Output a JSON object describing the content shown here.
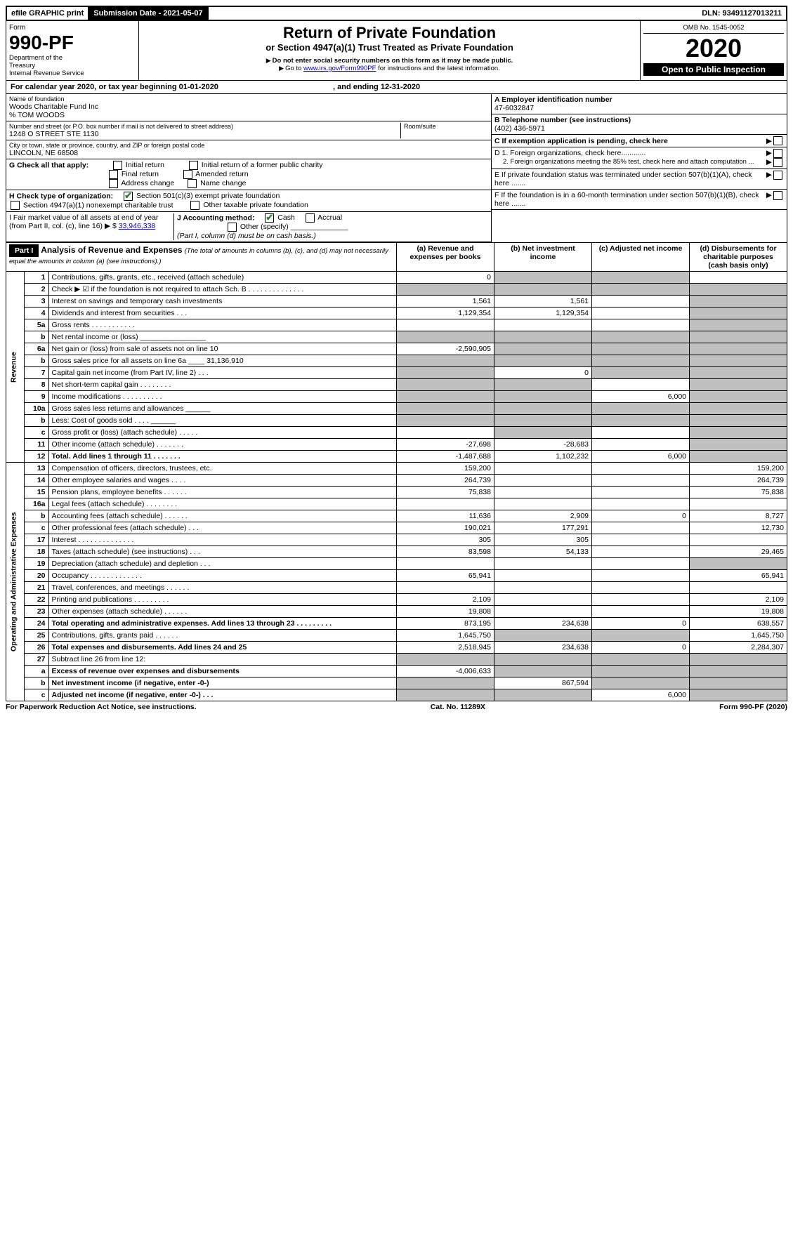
{
  "top": {
    "efile": "efile GRAPHIC print",
    "submission_label": "Submission Date - 2021-05-07",
    "dln_label": "DLN: 93491127013211"
  },
  "header": {
    "form_word": "Form",
    "form_no": "990-PF",
    "dept1": "Department of the",
    "dept2": "Treasury",
    "dept3": "Internal Revenue Service",
    "title": "Return of Private Foundation",
    "subtitle": "or Section 4947(a)(1) Trust Treated as Private Foundation",
    "warn1": "Do not enter social security numbers on this form as it may be made public.",
    "warn2_pre": "Go to ",
    "warn2_link": "www.irs.gov/Form990PF",
    "warn2_post": " for instructions and the latest information.",
    "omb": "OMB No. 1545-0052",
    "year": "2020",
    "open": "Open to Public Inspection"
  },
  "cal": {
    "text1": "For calendar year 2020, or tax year beginning ",
    "begin": "01-01-2020",
    "text2": " , and ending ",
    "end": "12-31-2020"
  },
  "entity": {
    "name_label": "Name of foundation",
    "name": "Woods Charitable Fund Inc",
    "care_of": "% TOM WOODS",
    "street_label": "Number and street (or P.O. box number if mail is not delivered to street address)",
    "street": "1248 O STREET STE 1130",
    "room_label": "Room/suite",
    "city_label": "City or town, state or province, country, and ZIP or foreign postal code",
    "city": "LINCOLN, NE  68508",
    "a_label": "A Employer identification number",
    "ein": "47-6032847",
    "b_label": "B Telephone number (see instructions)",
    "phone": "(402) 436-5971",
    "c_label": "C If exemption application is pending, check here"
  },
  "checks": {
    "g_label": "G Check all that apply:",
    "g1": "Initial return",
    "g2": "Initial return of a former public charity",
    "g3": "Final return",
    "g4": "Amended return",
    "g5": "Address change",
    "g6": "Name change",
    "h_label": "H Check type of organization:",
    "h1": "Section 501(c)(3) exempt private foundation",
    "h2": "Section 4947(a)(1) nonexempt charitable trust",
    "h3": "Other taxable private foundation",
    "i_label": "I Fair market value of all assets at end of year (from Part II, col. (c), line 16)",
    "i_val": "33,946,338",
    "j_label": "J Accounting method:",
    "j1": "Cash",
    "j2": "Accrual",
    "j3": "Other (specify)",
    "j_note": "(Part I, column (d) must be on cash basis.)",
    "d1": "D 1. Foreign organizations, check here............",
    "d2": "2. Foreign organizations meeting the 85% test, check here and attach computation ...",
    "e": "E  If private foundation status was terminated under section 507(b)(1)(A), check here .......",
    "f": "F  If the foundation is in a 60-month termination under section 507(b)(1)(B), check here ......."
  },
  "part1": {
    "label": "Part I",
    "title": "Analysis of Revenue and Expenses",
    "note": "(The total of amounts in columns (b), (c), and (d) may not necessarily equal the amounts in column (a) (see instructions).)",
    "cols": {
      "a": "(a) Revenue and expenses per books",
      "b": "(b) Net investment income",
      "c": "(c) Adjusted net income",
      "d": "(d) Disbursements for charitable purposes (cash basis only)"
    }
  },
  "sections": {
    "rev": "Revenue",
    "exp": "Operating and Administrative Expenses"
  },
  "rows": [
    {
      "n": "1",
      "desc": "Contributions, gifts, grants, etc., received (attach schedule)",
      "a": "0",
      "b": "",
      "c": "",
      "d": "",
      "ds": "",
      "cs": "s",
      "bs": "s"
    },
    {
      "n": "2",
      "desc": "Check ▶ ☑ if the foundation is not required to attach Sch. B",
      "a": "",
      "b": "",
      "c": "",
      "d": "",
      "ds": "s",
      "cs": "s",
      "bs": "s",
      "as": "s",
      "dots": " .  .  .  .  .  .  .  .  .  .  .  .  .  ."
    },
    {
      "n": "3",
      "desc": "Interest on savings and temporary cash investments",
      "a": "1,561",
      "b": "1,561",
      "c": "",
      "d": "",
      "ds": "s"
    },
    {
      "n": "4",
      "desc": "Dividends and interest from securities   .   .   .",
      "a": "1,129,354",
      "b": "1,129,354",
      "c": "",
      "d": "",
      "ds": "s"
    },
    {
      "n": "5a",
      "desc": "Gross rents    .   .   .   .   .   .   .   .   .   .   .",
      "a": "",
      "b": "",
      "c": "",
      "d": "",
      "ds": "s"
    },
    {
      "n": "b",
      "desc": "Net rental income or (loss)  ________________",
      "a": "",
      "b": "",
      "c": "",
      "d": "",
      "as": "s",
      "bs": "s",
      "cs": "s",
      "ds": "s"
    },
    {
      "n": "6a",
      "desc": "Net gain or (loss) from sale of assets not on line 10",
      "a": "-2,590,905",
      "b": "",
      "c": "",
      "d": "",
      "bs": "s",
      "cs": "s",
      "ds": "s"
    },
    {
      "n": "b",
      "desc": "Gross sales price for all assets on line 6a ____ 31,136,910",
      "a": "",
      "b": "",
      "c": "",
      "d": "",
      "as": "s",
      "bs": "s",
      "cs": "s",
      "ds": "s"
    },
    {
      "n": "7",
      "desc": "Capital gain net income (from Part IV, line 2)   .   .   .",
      "a": "",
      "b": "0",
      "c": "",
      "d": "",
      "as": "s",
      "cs": "s",
      "ds": "s"
    },
    {
      "n": "8",
      "desc": "Net short-term capital gain   .   .   .   .   .   .   .   .",
      "a": "",
      "b": "",
      "c": "",
      "d": "",
      "as": "s",
      "bs": "s",
      "ds": "s"
    },
    {
      "n": "9",
      "desc": "Income modifications  .   .   .   .   .   .   .   .   .   .",
      "a": "",
      "b": "",
      "c": "6,000",
      "d": "",
      "as": "s",
      "bs": "s",
      "ds": "s"
    },
    {
      "n": "10a",
      "desc": "Gross sales less returns and allowances  ______",
      "a": "",
      "b": "",
      "c": "",
      "d": "",
      "as": "s",
      "bs": "s",
      "cs": "s",
      "ds": "s"
    },
    {
      "n": "b",
      "desc": "Less: Cost of goods sold      .   .   .   .  ______",
      "a": "",
      "b": "",
      "c": "",
      "d": "",
      "as": "s",
      "bs": "s",
      "cs": "s",
      "ds": "s"
    },
    {
      "n": "c",
      "desc": "Gross profit or (loss) (attach schedule)   .   .   .   .   .",
      "a": "",
      "b": "",
      "c": "",
      "d": "",
      "bs": "s",
      "ds": "s"
    },
    {
      "n": "11",
      "desc": "Other income (attach schedule)    .   .   .   .   .   .   .",
      "a": "-27,698",
      "b": "-28,683",
      "c": "",
      "d": "",
      "ds": "s"
    },
    {
      "n": "12",
      "desc": "Total. Add lines 1 through 11    .   .   .   .   .   .   .",
      "a": "-1,487,688",
      "b": "1,102,232",
      "c": "6,000",
      "d": "",
      "ds": "s",
      "bold": true
    }
  ],
  "exp_rows": [
    {
      "n": "13",
      "desc": "Compensation of officers, directors, trustees, etc.",
      "a": "159,200",
      "b": "",
      "c": "",
      "d": "159,200"
    },
    {
      "n": "14",
      "desc": "Other employee salaries and wages    .   .   .   .",
      "a": "264,739",
      "b": "",
      "c": "",
      "d": "264,739"
    },
    {
      "n": "15",
      "desc": "Pension plans, employee benefits   .   .   .   .   .   .",
      "a": "75,838",
      "b": "",
      "c": "",
      "d": "75,838"
    },
    {
      "n": "16a",
      "desc": "Legal fees (attach schedule)  .   .   .   .   .   .   .   .",
      "a": "",
      "b": "",
      "c": "",
      "d": ""
    },
    {
      "n": "b",
      "desc": "Accounting fees (attach schedule)  .   .   .   .   .   .",
      "a": "11,636",
      "b": "2,909",
      "c": "0",
      "d": "8,727"
    },
    {
      "n": "c",
      "desc": "Other professional fees (attach schedule)    .   .   .",
      "a": "190,021",
      "b": "177,291",
      "c": "",
      "d": "12,730"
    },
    {
      "n": "17",
      "desc": "Interest   .   .   .   .   .   .   .   .   .   .   .   .   .   .",
      "a": "305",
      "b": "305",
      "c": "",
      "d": ""
    },
    {
      "n": "18",
      "desc": "Taxes (attach schedule) (see instructions)    .   .   .",
      "a": "83,598",
      "b": "54,133",
      "c": "",
      "d": "29,465"
    },
    {
      "n": "19",
      "desc": "Depreciation (attach schedule) and depletion   .   .   .",
      "a": "",
      "b": "",
      "c": "",
      "d": "",
      "ds": "s"
    },
    {
      "n": "20",
      "desc": "Occupancy  .   .   .   .   .   .   .   .   .   .   .   .   .",
      "a": "65,941",
      "b": "",
      "c": "",
      "d": "65,941"
    },
    {
      "n": "21",
      "desc": "Travel, conferences, and meetings  .   .   .   .   .   .",
      "a": "",
      "b": "",
      "c": "",
      "d": ""
    },
    {
      "n": "22",
      "desc": "Printing and publications  .   .   .   .   .   .   .   .   .",
      "a": "2,109",
      "b": "",
      "c": "",
      "d": "2,109"
    },
    {
      "n": "23",
      "desc": "Other expenses (attach schedule)   .   .   .   .   .   .",
      "a": "19,808",
      "b": "",
      "c": "",
      "d": "19,808"
    },
    {
      "n": "24",
      "desc": "Total operating and administrative expenses. Add lines 13 through 23   .   .   .   .   .   .   .   .   .",
      "a": "873,195",
      "b": "234,638",
      "c": "0",
      "d": "638,557",
      "bold": true
    },
    {
      "n": "25",
      "desc": "Contributions, gifts, grants paid      .   .   .   .   .   .",
      "a": "1,645,750",
      "b": "",
      "c": "",
      "d": "1,645,750",
      "bs": "s",
      "cs": "s"
    },
    {
      "n": "26",
      "desc": "Total expenses and disbursements. Add lines 24 and 25",
      "a": "2,518,945",
      "b": "234,638",
      "c": "0",
      "d": "2,284,307",
      "bold": true
    },
    {
      "n": "27",
      "desc": "Subtract line 26 from line 12:",
      "a": "",
      "b": "",
      "c": "",
      "d": "",
      "as": "s",
      "bs": "s",
      "cs": "s",
      "ds": "s"
    },
    {
      "n": "a",
      "desc": "Excess of revenue over expenses and disbursements",
      "a": "-4,006,633",
      "b": "",
      "c": "",
      "d": "",
      "bs": "s",
      "cs": "s",
      "ds": "s",
      "bold": true
    },
    {
      "n": "b",
      "desc": "Net investment income (if negative, enter -0-)",
      "a": "",
      "b": "867,594",
      "c": "",
      "d": "",
      "as": "s",
      "cs": "s",
      "ds": "s",
      "bold": true
    },
    {
      "n": "c",
      "desc": "Adjusted net income (if negative, enter -0-)   .   .   .",
      "a": "",
      "b": "",
      "c": "6,000",
      "d": "",
      "as": "s",
      "bs": "s",
      "ds": "s",
      "bold": true
    }
  ],
  "footer": {
    "left": "For Paperwork Reduction Act Notice, see instructions.",
    "mid": "Cat. No. 11289X",
    "right": "Form 990-PF (2020)"
  }
}
